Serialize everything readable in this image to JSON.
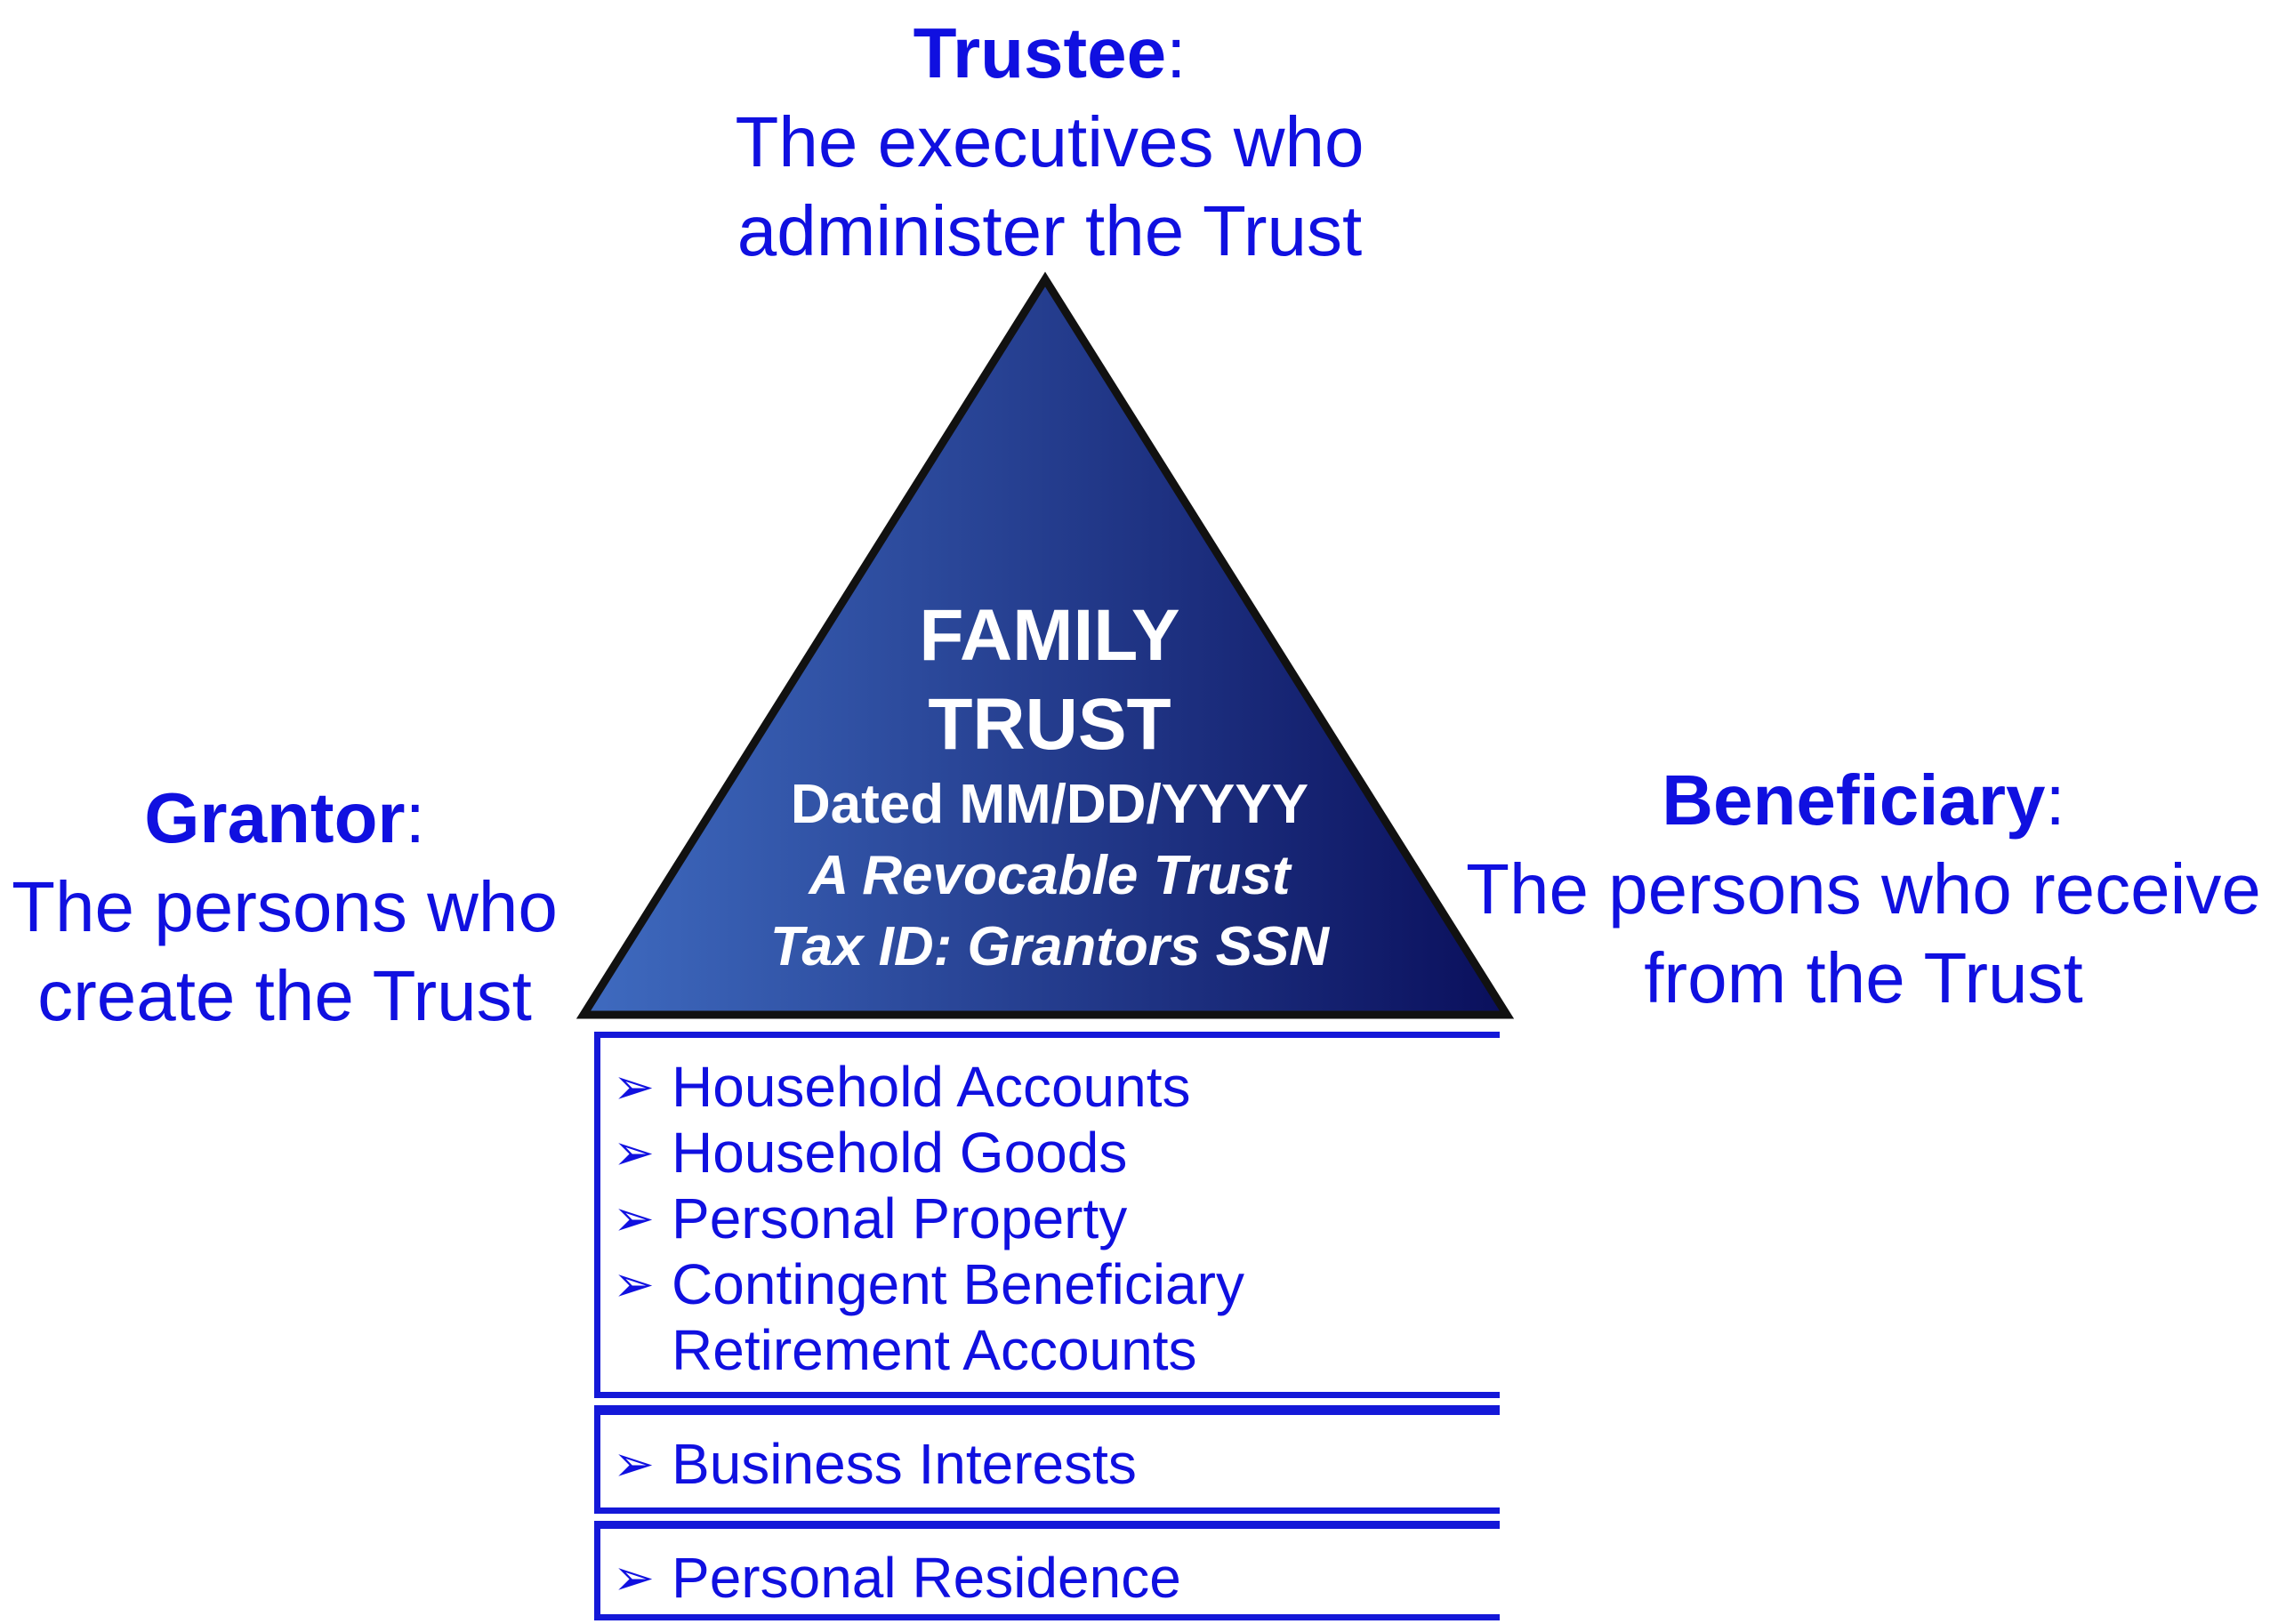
{
  "colors": {
    "text_blue": "#1010e0",
    "trust_gradient_start": "#3f6bc0",
    "trust_gradient_end": "#0a0f5c",
    "trust_outline": "#111111",
    "trust_text": "#ffffff",
    "box_border": "#1418d8"
  },
  "trustee": {
    "name": "Trustee",
    "colon": ":",
    "desc_line1": "The executives who",
    "desc_line2": "administer the Trust"
  },
  "grantor": {
    "name": "Grantor",
    "colon": ":",
    "desc_line1": "The persons who",
    "desc_line2": "create the Trust"
  },
  "beneficiary": {
    "name": "Beneficiary",
    "colon": ":",
    "desc_line1": "The persons who receive",
    "desc_line2": "from the Trust"
  },
  "trust": {
    "title_line1": "FAMILY",
    "title_line2": "TRUST",
    "dated": "Dated MM/DD/YYYY",
    "type": "A Revocable Trust",
    "tax_id": "Tax ID: Grantors SSN"
  },
  "asset_groups": [
    {
      "items": [
        {
          "bullet": "➢",
          "label": "Household Accounts"
        },
        {
          "bullet": "➢",
          "label": "Household Goods"
        },
        {
          "bullet": "➢",
          "label": "Personal Property"
        },
        {
          "bullet": "➢",
          "label": "Contingent Beneficiary",
          "label2": "Retirement Accounts"
        }
      ]
    },
    {
      "items": [
        {
          "bullet": "➢",
          "label": "Business Interests"
        }
      ]
    },
    {
      "items": [
        {
          "bullet": "➢",
          "label": "Personal Residence"
        }
      ]
    }
  ]
}
